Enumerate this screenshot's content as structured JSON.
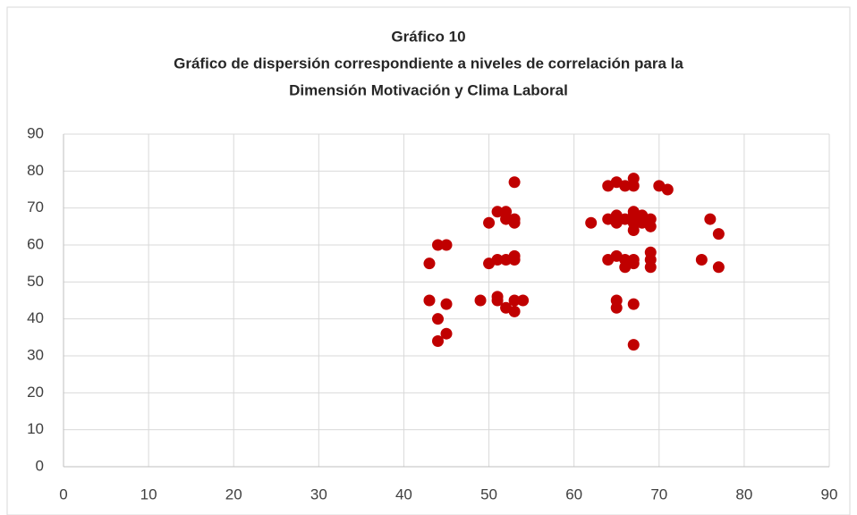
{
  "chart_data": {
    "type": "scatter",
    "title": "Gráfico 10",
    "subtitle": [
      "Gráfico de dispersión correspondiente  a niveles de correlación para la",
      "Dimensión Motivación y Clima Laboral"
    ],
    "color": "#c00000",
    "grid": true,
    "xlim": [
      0,
      90
    ],
    "xticks": [
      0,
      10,
      20,
      30,
      40,
      50,
      60,
      70,
      80,
      90
    ],
    "ylim": [
      0,
      90
    ],
    "yticks": [
      0,
      10,
      20,
      30,
      40,
      50,
      60,
      70,
      80,
      90
    ],
    "x": [
      43,
      43,
      44,
      45,
      44,
      44,
      45,
      45,
      49,
      50,
      50,
      51,
      51,
      51,
      51,
      52,
      52,
      52,
      52,
      53,
      53,
      53,
      53,
      53,
      53,
      53,
      54,
      62,
      64,
      64,
      64,
      65,
      65,
      65,
      65,
      65,
      65,
      66,
      66,
      66,
      66,
      67,
      67,
      67,
      67,
      67,
      67,
      67,
      67,
      67,
      67,
      68,
      68,
      69,
      69,
      69,
      69,
      69,
      70,
      71,
      75,
      76,
      77,
      77
    ],
    "y": [
      55,
      45,
      60,
      60,
      40,
      34,
      44,
      36,
      45,
      66,
      55,
      69,
      56,
      46,
      45,
      69,
      67,
      56,
      43,
      77,
      67,
      66,
      56,
      57,
      45,
      42,
      45,
      66,
      76,
      67,
      56,
      77,
      68,
      66,
      57,
      45,
      43,
      76,
      67,
      56,
      54,
      78,
      76,
      69,
      68,
      66,
      64,
      56,
      55,
      44,
      33,
      68,
      66,
      67,
      65,
      58,
      56,
      54,
      76,
      75,
      56,
      67,
      63,
      54
    ]
  }
}
